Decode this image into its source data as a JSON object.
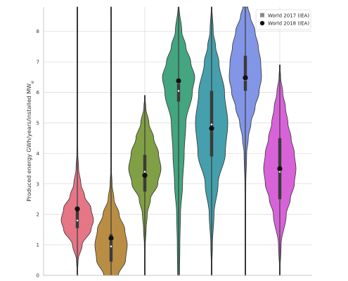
{
  "chart_data": {
    "type": "violin",
    "title": "",
    "xlabel": "",
    "ylabel": "Produced energy GWh/years/installed MW",
    "ylabel_subscript": "e",
    "ylim": [
      0,
      8.8
    ],
    "yticks": [
      "0",
      "1",
      "2",
      "3",
      "4",
      "5",
      "6",
      "7",
      "8"
    ],
    "grid": true,
    "legend": {
      "placement": "top-right",
      "entries": [
        {
          "name": "World 2017 (IEA)",
          "marker": "square",
          "color": "#888888"
        },
        {
          "name": "World 2018 (IEA)",
          "marker": "circle",
          "color": "#111111"
        }
      ]
    },
    "categories": [
      "",
      "",
      "",
      "",
      "",
      "",
      ""
    ],
    "violins": [
      {
        "color": "#e36f7f",
        "min": 0.0,
        "max": 8.8,
        "q1": 1.55,
        "median": 1.8,
        "q3": 2.2,
        "world_2017": 2.2,
        "world_2018": 2.18,
        "density": [
          [
            0.0,
            0.0
          ],
          [
            0.5,
            0.05
          ],
          [
            1.0,
            0.3
          ],
          [
            1.5,
            0.85
          ],
          [
            1.8,
            1.0
          ],
          [
            2.2,
            0.85
          ],
          [
            2.6,
            0.45
          ],
          [
            3.0,
            0.22
          ],
          [
            3.5,
            0.08
          ],
          [
            4.0,
            0.03
          ],
          [
            5.0,
            0.01
          ],
          [
            8.8,
            0.0
          ]
        ]
      },
      {
        "color": "#b5883a",
        "min": 0.0,
        "max": 8.8,
        "q1": 0.45,
        "median": 0.95,
        "q3": 1.35,
        "world_2017": 1.2,
        "world_2018": 1.22,
        "density": [
          [
            0.0,
            0.45
          ],
          [
            0.5,
            0.9
          ],
          [
            1.0,
            1.0
          ],
          [
            1.5,
            0.85
          ],
          [
            2.0,
            0.5
          ],
          [
            2.5,
            0.18
          ],
          [
            3.0,
            0.06
          ],
          [
            3.5,
            0.02
          ],
          [
            5.0,
            0.01
          ],
          [
            8.8,
            0.0
          ]
        ]
      },
      {
        "color": "#7a9a3a",
        "min": 0.0,
        "max": 5.9,
        "q1": 2.75,
        "median": 3.4,
        "q3": 3.95,
        "world_2017": 3.3,
        "world_2018": 3.28,
        "density": [
          [
            0.0,
            0.0
          ],
          [
            1.0,
            0.03
          ],
          [
            1.5,
            0.08
          ],
          [
            2.0,
            0.15
          ],
          [
            2.5,
            0.35
          ],
          [
            3.0,
            0.8
          ],
          [
            3.5,
            1.0
          ],
          [
            4.0,
            0.85
          ],
          [
            4.5,
            0.55
          ],
          [
            5.0,
            0.25
          ],
          [
            5.5,
            0.06
          ],
          [
            5.9,
            0.0
          ]
        ]
      },
      {
        "color": "#3aa07a",
        "min": 0.0,
        "max": 8.8,
        "q1": 5.7,
        "median": 6.05,
        "q3": 6.45,
        "world_2017": 6.35,
        "world_2018": 6.38,
        "density": [
          [
            0.0,
            0.06
          ],
          [
            1.0,
            0.08
          ],
          [
            2.0,
            0.12
          ],
          [
            3.0,
            0.25
          ],
          [
            4.0,
            0.35
          ],
          [
            5.0,
            0.45
          ],
          [
            6.0,
            0.85
          ],
          [
            6.5,
            1.0
          ],
          [
            7.0,
            0.75
          ],
          [
            7.5,
            0.45
          ],
          [
            8.0,
            0.2
          ],
          [
            8.8,
            0.03
          ]
        ]
      },
      {
        "color": "#3b9aa8",
        "min": 0.0,
        "max": 8.8,
        "q1": 3.9,
        "median": 4.95,
        "q3": 6.05,
        "world_2017": 4.8,
        "world_2018": 4.82,
        "density": [
          [
            0.0,
            0.0
          ],
          [
            1.0,
            0.05
          ],
          [
            2.0,
            0.15
          ],
          [
            3.0,
            0.4
          ],
          [
            4.0,
            0.85
          ],
          [
            5.0,
            1.0
          ],
          [
            6.0,
            0.8
          ],
          [
            7.0,
            0.45
          ],
          [
            7.5,
            0.25
          ],
          [
            8.0,
            0.1
          ],
          [
            8.8,
            0.02
          ]
        ]
      },
      {
        "color": "#7b8fe6",
        "min": 0.0,
        "max": 8.8,
        "q1": 6.05,
        "median": 6.5,
        "q3": 7.2,
        "world_2017": 6.45,
        "world_2018": 6.48,
        "density": [
          [
            0.0,
            0.0
          ],
          [
            2.0,
            0.01
          ],
          [
            3.0,
            0.03
          ],
          [
            4.0,
            0.08
          ],
          [
            4.5,
            0.18
          ],
          [
            5.0,
            0.35
          ],
          [
            5.5,
            0.6
          ],
          [
            6.0,
            0.85
          ],
          [
            6.5,
            1.0
          ],
          [
            7.0,
            0.95
          ],
          [
            7.5,
            0.8
          ],
          [
            8.0,
            0.6
          ],
          [
            8.5,
            0.3
          ],
          [
            8.8,
            0.15
          ]
        ]
      },
      {
        "color": "#d65bd6",
        "min": 0.0,
        "max": 6.9,
        "q1": 2.5,
        "median": 3.4,
        "q3": 4.5,
        "world_2017": 3.5,
        "world_2018": 3.5,
        "density": [
          [
            0.0,
            0.0
          ],
          [
            1.0,
            0.08
          ],
          [
            2.0,
            0.4
          ],
          [
            2.5,
            0.65
          ],
          [
            3.0,
            0.9
          ],
          [
            3.5,
            1.0
          ],
          [
            4.0,
            0.9
          ],
          [
            4.5,
            0.7
          ],
          [
            5.0,
            0.5
          ],
          [
            5.5,
            0.35
          ],
          [
            6.0,
            0.18
          ],
          [
            6.5,
            0.05
          ],
          [
            6.9,
            0.0
          ]
        ]
      }
    ]
  }
}
